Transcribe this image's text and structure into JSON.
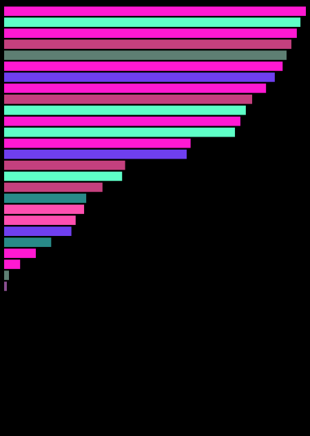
{
  "chart_data": {
    "type": "bar",
    "orientation": "horizontal",
    "title": "",
    "xlabel": "",
    "ylabel": "",
    "xlim": [
      0,
      100
    ],
    "grid": false,
    "legend": "none",
    "background": "#000000",
    "values": [
      100,
      98.2,
      97.0,
      95.2,
      93.6,
      92.3,
      89.7,
      86.8,
      82.2,
      80.1,
      78.3,
      76.5,
      61.8,
      60.5,
      40.1,
      39.1,
      32.6,
      27.2,
      26.5,
      23.7,
      22.3,
      15.6,
      10.5,
      5.3,
      1.6,
      0.9
    ],
    "colors": [
      "#ff19d2",
      "#5effc7",
      "#ff19d2",
      "#c4407e",
      "#5e7f73",
      "#ff19d2",
      "#6f3fef",
      "#ff19d2",
      "#c4407e",
      "#5effc7",
      "#ff19d2",
      "#5effc7",
      "#ff19d2",
      "#6f3fef",
      "#c4407e",
      "#5effc7",
      "#c4407e",
      "#288a88",
      "#ff4fb0",
      "#ff4fb0",
      "#6f3fef",
      "#288a88",
      "#ff19d2",
      "#ff19d2",
      "#5e7f73",
      "#8a4f90"
    ]
  }
}
